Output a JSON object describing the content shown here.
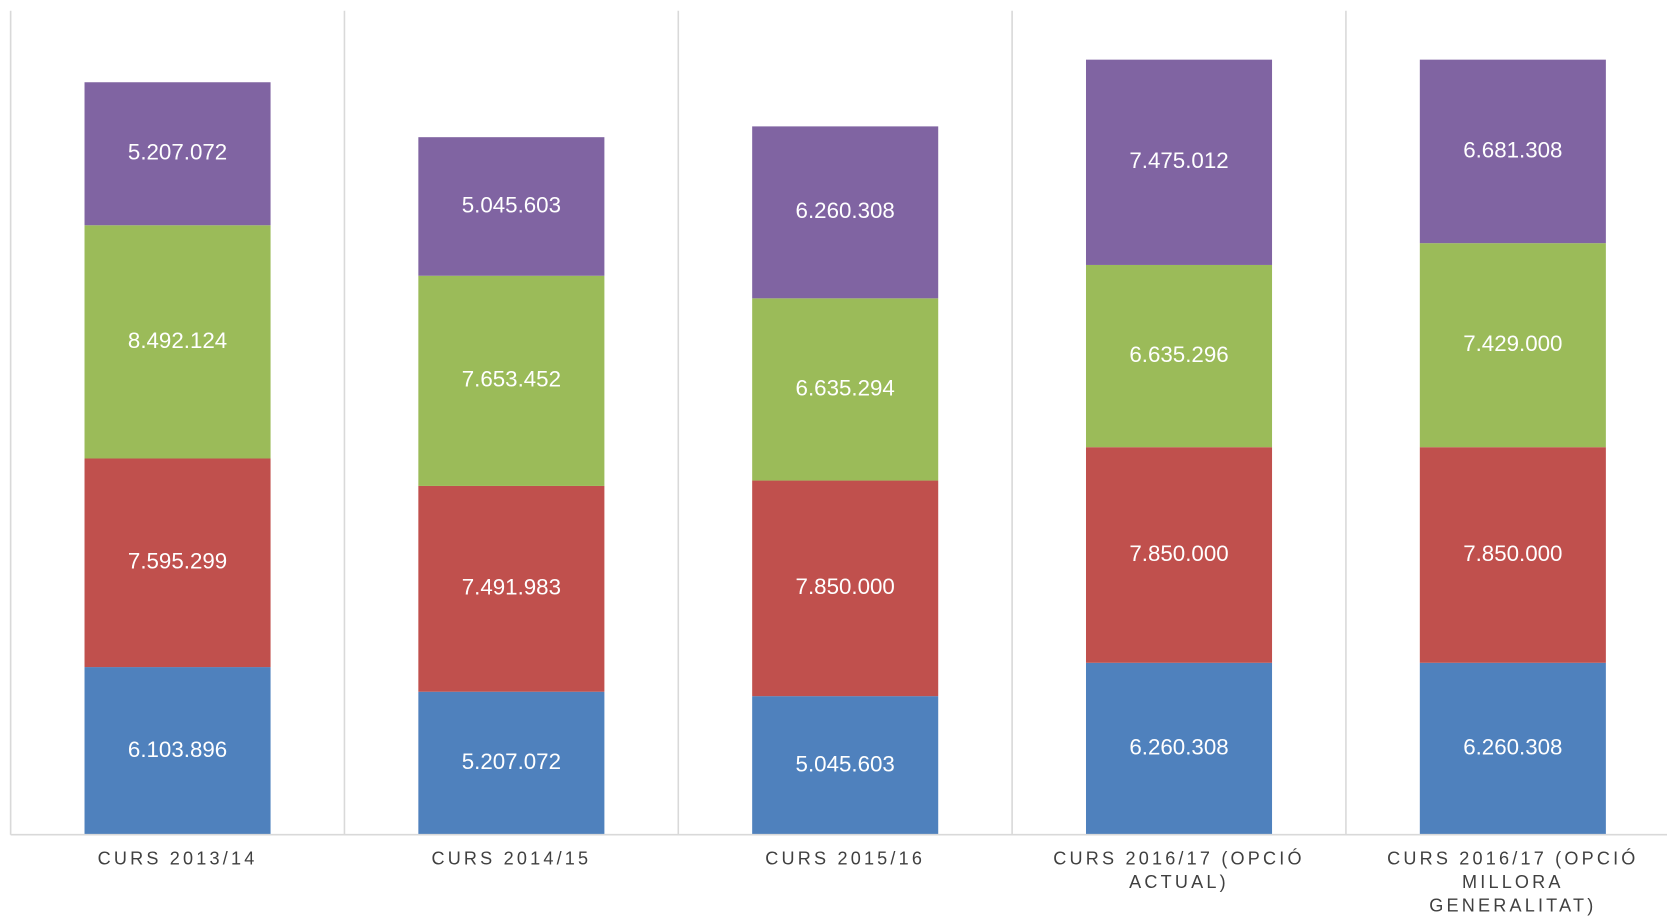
{
  "chart_data": {
    "type": "stacked_bar",
    "categories": [
      "CURS 2013/14",
      "CURS 2014/15",
      "CURS 2015/16",
      "CURS 2016/17 (OPCIÓ ACTUAL)",
      "CURS 2016/17 (OPCIÓ MILLORA GENERALITAT)"
    ],
    "ylim": [
      0,
      30000000
    ],
    "series": [
      {
        "color": "#4f81bd",
        "values": [
          6103896,
          5207072,
          5045603,
          6260308,
          6260308
        ],
        "value_labels": [
          "6.103.896",
          "5.207.072",
          "5.045.603",
          "6.260.308",
          "6.260.308"
        ]
      },
      {
        "color": "#c0504d",
        "values": [
          7595299,
          7491983,
          7850000,
          7850000,
          7850000
        ],
        "value_labels": [
          "7.595.299",
          "7.491.983",
          "7.850.000",
          "7.850.000",
          "7.850.000"
        ]
      },
      {
        "color": "#9bbb59",
        "values": [
          8492124,
          7653452,
          6635294,
          6635296,
          7429000
        ],
        "value_labels": [
          "8.492.124",
          "7.653.452",
          "6.635.294",
          "6.635.296",
          "7.429.000"
        ]
      },
      {
        "color": "#8064a2",
        "values": [
          5207072,
          5045603,
          6260308,
          7475012,
          6681308
        ],
        "value_labels": [
          "5.207.072",
          "5.045.603",
          "6.260.308",
          "7.475.012",
          "6.681.308"
        ]
      }
    ]
  }
}
